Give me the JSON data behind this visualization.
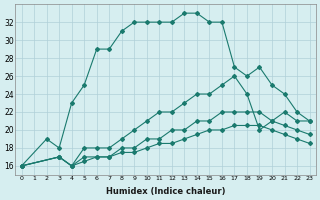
{
  "xlabel": "Humidex (Indice chaleur)",
  "bg_color": "#d6eef0",
  "grid_color": "#b0d0d8",
  "line_color": "#1a7a6e",
  "xlim": [
    -0.5,
    23.5
  ],
  "ylim": [
    15,
    34
  ],
  "yticks": [
    16,
    18,
    20,
    22,
    24,
    26,
    28,
    30,
    32
  ],
  "xticks": [
    0,
    1,
    2,
    3,
    4,
    5,
    6,
    7,
    8,
    9,
    10,
    11,
    12,
    13,
    14,
    15,
    16,
    17,
    18,
    19,
    20,
    21,
    22,
    23
  ],
  "series1_x": [
    0,
    2,
    3,
    4,
    5,
    6,
    7,
    8,
    9,
    10,
    11,
    12,
    13,
    14,
    15,
    16,
    17,
    18,
    19,
    20,
    21,
    22,
    23
  ],
  "series1_y": [
    16,
    19,
    18,
    23,
    25,
    29,
    29,
    31,
    32,
    32,
    32,
    32,
    33,
    33,
    32,
    32,
    27,
    26,
    27,
    25,
    24,
    22,
    21
  ],
  "series2_x": [
    0,
    3,
    4,
    5,
    6,
    7,
    8,
    9,
    10,
    11,
    12,
    13,
    14,
    15,
    16,
    17,
    18,
    19,
    20,
    21,
    22,
    23
  ],
  "series2_y": [
    16,
    17,
    16,
    18,
    18,
    18,
    19,
    20,
    21,
    22,
    22,
    23,
    24,
    24,
    25,
    26,
    24,
    20,
    21,
    22,
    21,
    21
  ],
  "series3_x": [
    0,
    3,
    4,
    5,
    6,
    7,
    8,
    9,
    10,
    11,
    12,
    13,
    14,
    15,
    16,
    17,
    18,
    19,
    20,
    21,
    22,
    23
  ],
  "series3_y": [
    16,
    17,
    16,
    17,
    17,
    17,
    18,
    18,
    19,
    19,
    20,
    20,
    21,
    21,
    22,
    22,
    22,
    22,
    21,
    20.5,
    20,
    19.5
  ],
  "series4_x": [
    0,
    3,
    4,
    5,
    6,
    7,
    8,
    9,
    10,
    11,
    12,
    13,
    14,
    15,
    16,
    17,
    18,
    19,
    20,
    21,
    22,
    23
  ],
  "series4_y": [
    16,
    17,
    16,
    16.5,
    17,
    17,
    17.5,
    17.5,
    18,
    18.5,
    18.5,
    19,
    19.5,
    20,
    20,
    20.5,
    20.5,
    20.5,
    20,
    19.5,
    19,
    18.5
  ]
}
